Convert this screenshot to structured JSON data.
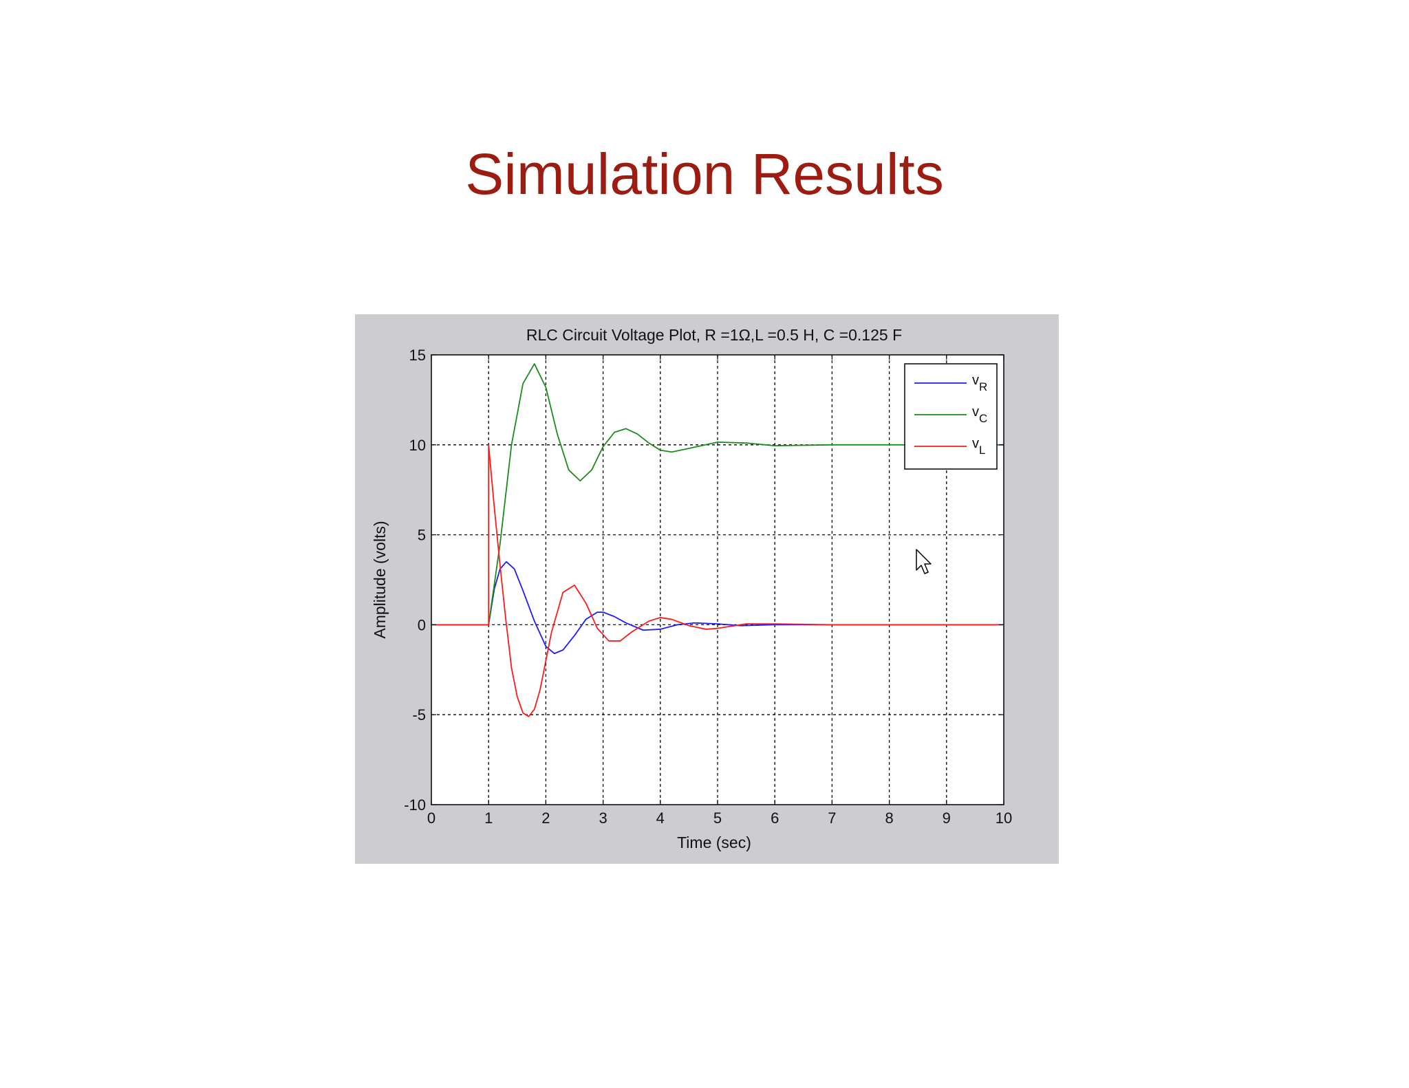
{
  "slide": {
    "title": "Simulation Results"
  },
  "chart_data": {
    "type": "line",
    "title": "RLC Circuit Voltage Plot, R =1Ω,L =0.5 H, C =0.125 F",
    "xlabel": "Time (sec)",
    "ylabel": "Amplitude (volts)",
    "xlim": [
      0,
      10
    ],
    "ylim": [
      -10,
      15
    ],
    "xticks": [
      0,
      1,
      2,
      3,
      4,
      5,
      6,
      7,
      8,
      9,
      10
    ],
    "yticks": [
      -10,
      -5,
      0,
      5,
      10,
      15
    ],
    "xtick_labels": [
      "0",
      "1",
      "2",
      "3",
      "4",
      "5",
      "6",
      "7",
      "8",
      "9",
      "10"
    ],
    "ytick_labels": [
      "-10",
      "-5",
      "0",
      "5",
      "10",
      "15"
    ],
    "grid": true,
    "legend_position": "top-right",
    "series": [
      {
        "name": "v",
        "subscript": "R",
        "color": "#1a1aff",
        "x": [
          0,
          1,
          1.1,
          1.2,
          1.31,
          1.45,
          1.6,
          1.8,
          2.0,
          2.15,
          2.3,
          2.5,
          2.7,
          2.9,
          3.0,
          3.2,
          3.4,
          3.7,
          4.0,
          4.3,
          4.6,
          5.0,
          5.4,
          6.0,
          7.0,
          10
        ],
        "y": [
          0,
          0,
          2.0,
          3.1,
          3.5,
          3.1,
          1.9,
          0.2,
          -1.2,
          -1.6,
          -1.4,
          -0.6,
          0.3,
          0.7,
          0.7,
          0.45,
          0.1,
          -0.3,
          -0.25,
          0.0,
          0.1,
          0.05,
          -0.05,
          0.0,
          0.0,
          0.0
        ]
      },
      {
        "name": "v",
        "subscript": "C",
        "color": "#1a8c1a",
        "x": [
          0,
          1,
          1.2,
          1.4,
          1.6,
          1.8,
          2.0,
          2.2,
          2.4,
          2.6,
          2.8,
          3.0,
          3.2,
          3.4,
          3.6,
          3.8,
          4.0,
          4.2,
          4.5,
          5.0,
          5.5,
          6.0,
          7.0,
          8.0,
          10
        ],
        "y": [
          0,
          0,
          4.5,
          10.0,
          13.4,
          14.5,
          13.2,
          10.6,
          8.6,
          8.0,
          8.6,
          9.9,
          10.7,
          10.9,
          10.6,
          10.1,
          9.7,
          9.6,
          9.8,
          10.15,
          10.1,
          9.95,
          10.0,
          10.0,
          10.0
        ]
      },
      {
        "name": "v",
        "subscript": "L",
        "color": "#ff1a1a",
        "x": [
          0,
          1,
          1,
          1.1,
          1.2,
          1.3,
          1.4,
          1.5,
          1.6,
          1.7,
          1.8,
          1.9,
          2.0,
          2.1,
          2.3,
          2.5,
          2.7,
          2.9,
          3.1,
          3.3,
          3.5,
          3.8,
          4.0,
          4.2,
          4.5,
          4.8,
          5.0,
          5.5,
          6.0,
          7.0,
          10
        ],
        "y": [
          0,
          0,
          10,
          6.5,
          3.3,
          0.3,
          -2.4,
          -4.0,
          -4.9,
          -5.1,
          -4.7,
          -3.6,
          -2.0,
          -0.4,
          1.8,
          2.2,
          1.2,
          -0.2,
          -0.9,
          -0.9,
          -0.4,
          0.2,
          0.4,
          0.3,
          -0.05,
          -0.25,
          -0.2,
          0.05,
          0.05,
          0.0,
          0.0
        ]
      }
    ]
  }
}
